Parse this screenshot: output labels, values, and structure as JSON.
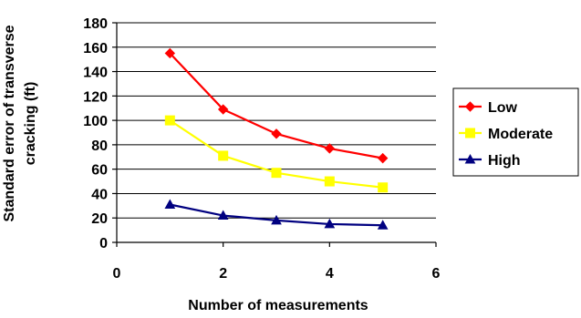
{
  "chart_data": {
    "type": "line",
    "title": "",
    "xlabel": "Number of measurements",
    "ylabel": "Standard error of transverse cracking (ft)",
    "xlim": [
      0,
      6
    ],
    "ylim": [
      0,
      180
    ],
    "xticks": [
      0,
      2,
      4,
      6
    ],
    "yticks": [
      0,
      20,
      40,
      60,
      80,
      100,
      120,
      140,
      160,
      180
    ],
    "grid": "horizontal",
    "legend_position": "right",
    "series": [
      {
        "name": "Low",
        "color": "#ff0000",
        "marker": "diamond",
        "x": [
          1,
          2,
          3,
          4,
          5
        ],
        "y": [
          155,
          109,
          89,
          77,
          69
        ]
      },
      {
        "name": "Moderate",
        "color": "#ffff00",
        "marker": "square",
        "x": [
          1,
          2,
          3,
          4,
          5
        ],
        "y": [
          100,
          71,
          57,
          50,
          45
        ]
      },
      {
        "name": "High",
        "color": "#000080",
        "marker": "triangle",
        "x": [
          1,
          2,
          3,
          4,
          5
        ],
        "y": [
          31,
          22,
          18,
          15,
          14
        ]
      }
    ]
  }
}
